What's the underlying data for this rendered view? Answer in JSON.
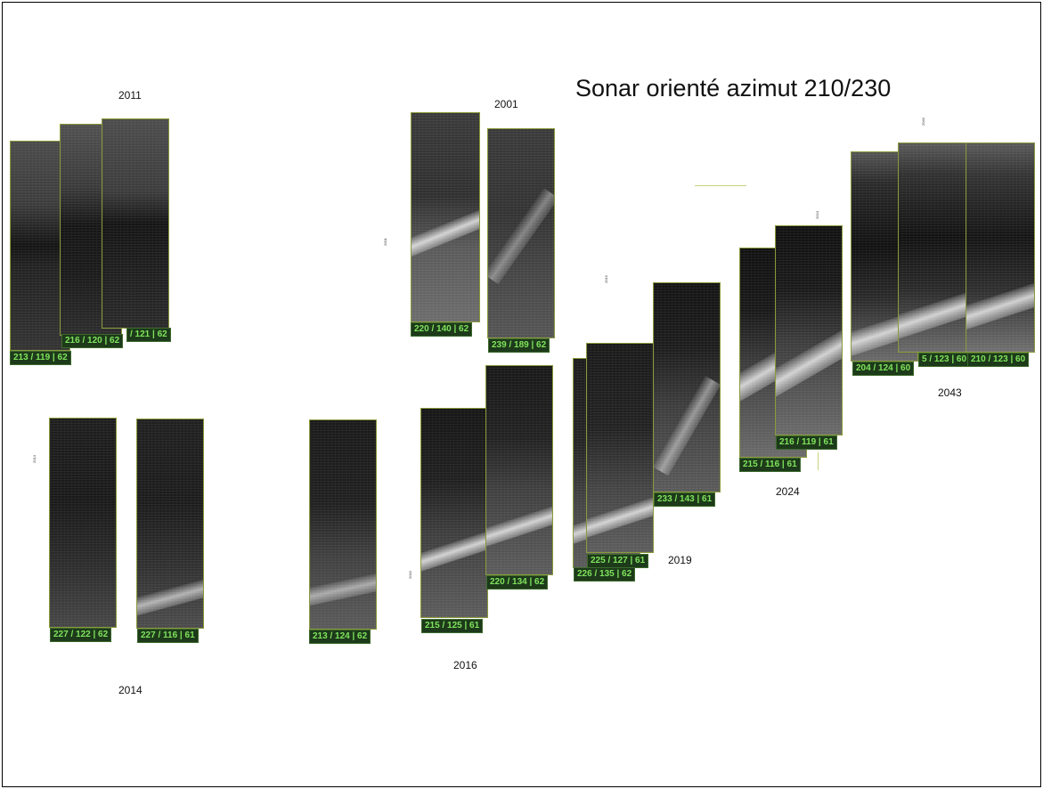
{
  "title": "Sonar orienté azimut 210/230",
  "years": [
    {
      "text": "2011"
    },
    {
      "text": "2001"
    },
    {
      "text": "2043"
    },
    {
      "text": "2024"
    },
    {
      "text": "2019"
    },
    {
      "text": "2016"
    },
    {
      "text": "2014"
    }
  ],
  "small_rotated_labels": [
    {
      "text": "2001"
    },
    {
      "text": "2019"
    },
    {
      "text": "2024"
    },
    {
      "text": "2043"
    },
    {
      "text": "2014"
    },
    {
      "text": "2016"
    }
  ],
  "sonar_labels": [
    "213 / 119 | 62",
    "216 / 120 | 62",
    "/ 121 | 62",
    "220 / 140 | 62",
    "239 / 189 | 62",
    "204 / 124 | 60",
    "5 / 123 | 60",
    "210 / 123 | 60",
    "216 / 119 | 61",
    "215 / 116 | 61",
    "233 / 143 | 61",
    "225 / 127 | 61",
    "226 / 135 | 62",
    "220 / 134 | 62",
    "215 / 125 | 61",
    "213 / 124 | 62",
    "227 / 122 | 62",
    "227 / 116 | 61"
  ]
}
